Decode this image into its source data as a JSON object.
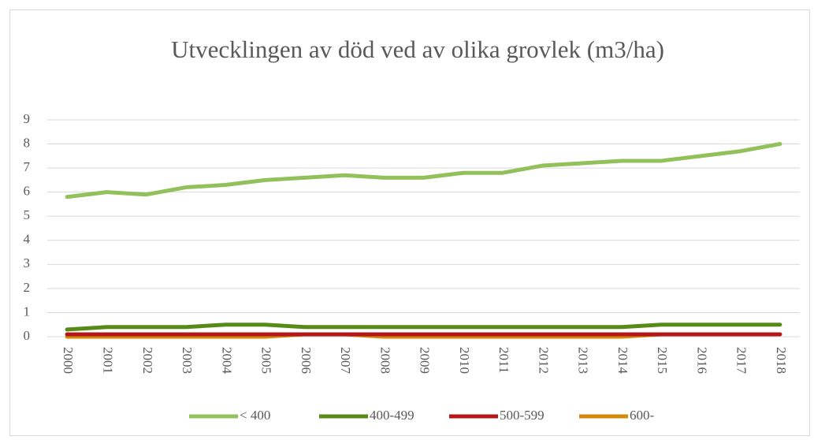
{
  "chart_data": {
    "type": "line",
    "title": "Utvecklingen av död ved av olika grovlek (m3/ha)",
    "categories": [
      "2000",
      "2001",
      "2002",
      "2003",
      "2004",
      "2005",
      "2006",
      "2007",
      "2008",
      "2009",
      "2010",
      "2011",
      "2012",
      "2013",
      "2014",
      "2015",
      "2016",
      "2017",
      "2018"
    ],
    "series": [
      {
        "name": "< 400",
        "color": "#92c05a",
        "values": [
          5.8,
          6.0,
          5.9,
          6.2,
          6.3,
          6.5,
          6.6,
          6.7,
          6.6,
          6.6,
          6.8,
          6.8,
          7.1,
          7.2,
          7.3,
          7.3,
          7.5,
          7.7,
          8.0
        ]
      },
      {
        "name": "400-499",
        "color": "#588a17",
        "values": [
          0.3,
          0.4,
          0.4,
          0.4,
          0.5,
          0.5,
          0.4,
          0.4,
          0.4,
          0.4,
          0.4,
          0.4,
          0.4,
          0.4,
          0.4,
          0.5,
          0.5,
          0.5,
          0.5
        ]
      },
      {
        "name": "500-599",
        "color": "#b4171a",
        "values": [
          0.1,
          0.1,
          0.1,
          0.1,
          0.1,
          0.1,
          0.1,
          0.1,
          0.1,
          0.1,
          0.1,
          0.1,
          0.1,
          0.1,
          0.1,
          0.1,
          0.1,
          0.1,
          0.1
        ]
      },
      {
        "name": "600-",
        "color": "#d4890a",
        "values": [
          0,
          0,
          0,
          0,
          0,
          0,
          0.1,
          0.1,
          0,
          0,
          0,
          0,
          0,
          0,
          0,
          0.1,
          0.1,
          0.1,
          0.1
        ]
      }
    ],
    "ylim": [
      0,
      9
    ],
    "yticks": [
      0,
      1,
      2,
      3,
      4,
      5,
      6,
      7,
      8,
      9
    ],
    "grid": true,
    "legend": "bottom"
  }
}
